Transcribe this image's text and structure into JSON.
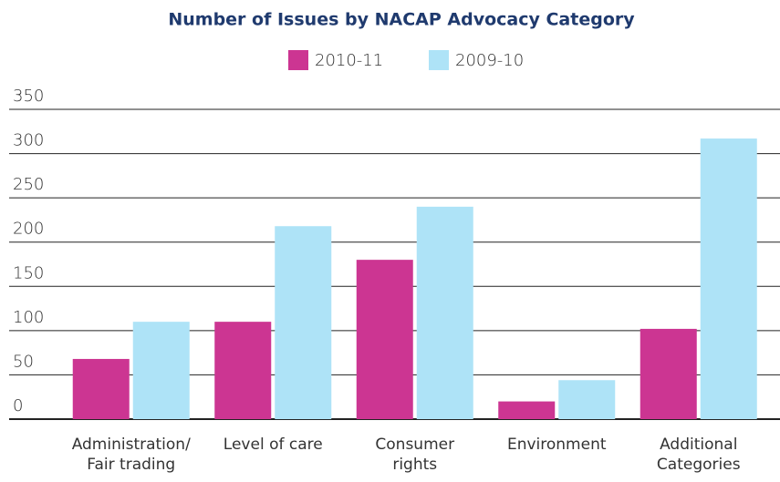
{
  "chart_data": {
    "type": "bar",
    "title": "Number of Issues by NACAP Advocacy Category",
    "categories": [
      "Administration/\nFair trading",
      "Level of care",
      "Consumer\nrights",
      "Environment",
      "Additional\nCategories"
    ],
    "series": [
      {
        "name": "2010-11",
        "color": "#cc3592",
        "values": [
          68,
          110,
          180,
          20,
          102
        ]
      },
      {
        "name": "2009-10",
        "color": "#aee3f7",
        "values": [
          110,
          218,
          240,
          44,
          317
        ]
      }
    ],
    "ylim": [
      0,
      350
    ],
    "yticks": [
      0,
      50,
      100,
      150,
      200,
      250,
      300,
      350
    ],
    "grid": true,
    "legend": "top"
  }
}
